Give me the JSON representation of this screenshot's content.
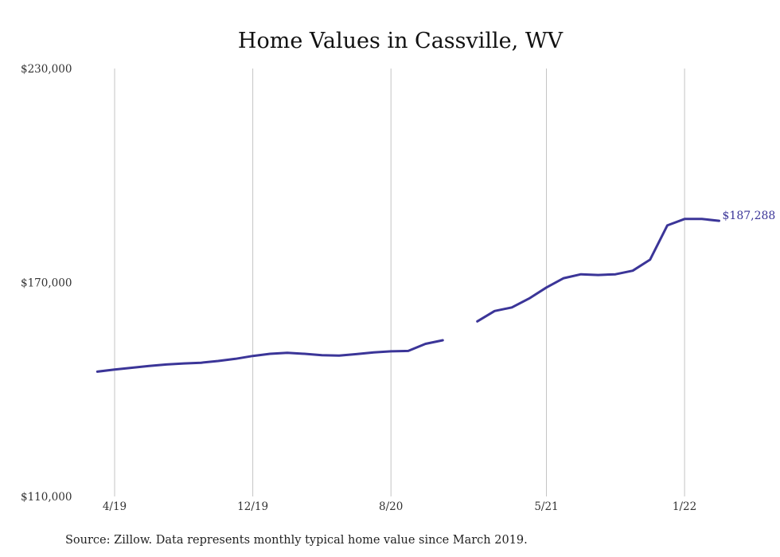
{
  "chart_data": {
    "type": "line",
    "title": "Home Values in Cassville, WV",
    "xlabel": "",
    "ylabel": "",
    "ylim": [
      110000,
      230000
    ],
    "y_ticks": [
      {
        "value": 110000,
        "label": "$110,000"
      },
      {
        "value": 170000,
        "label": "$170,000"
      },
      {
        "value": 230000,
        "label": "$230,000"
      }
    ],
    "x_ticks": [
      {
        "date": "2019-04",
        "label": "4/19"
      },
      {
        "date": "2019-12",
        "label": "12/19"
      },
      {
        "date": "2020-08",
        "label": "8/20"
      },
      {
        "date": "2021-05",
        "label": "5/21"
      },
      {
        "date": "2022-01",
        "label": "1/22"
      }
    ],
    "grid": "vertical-at-x-ticks",
    "line_color": "#3b3598",
    "series": [
      {
        "name": "",
        "color": "#3b3598",
        "points": [
          {
            "x": "2019-03",
            "y": 145000
          },
          {
            "x": "2019-04",
            "y": 145600
          },
          {
            "x": "2019-05",
            "y": 146100
          },
          {
            "x": "2019-06",
            "y": 146600
          },
          {
            "x": "2019-07",
            "y": 147000
          },
          {
            "x": "2019-08",
            "y": 147300
          },
          {
            "x": "2019-09",
            "y": 147500
          },
          {
            "x": "2019-10",
            "y": 148000
          },
          {
            "x": "2019-11",
            "y": 148600
          },
          {
            "x": "2019-12",
            "y": 149400
          },
          {
            "x": "2020-01",
            "y": 150000
          },
          {
            "x": "2020-02",
            "y": 150300
          },
          {
            "x": "2020-03",
            "y": 150000
          },
          {
            "x": "2020-04",
            "y": 149600
          },
          {
            "x": "2020-05",
            "y": 149500
          },
          {
            "x": "2020-06",
            "y": 149900
          },
          {
            "x": "2020-07",
            "y": 150400
          },
          {
            "x": "2020-08",
            "y": 150700
          },
          {
            "x": "2020-09",
            "y": 150800
          },
          {
            "x": "2020-10",
            "y": 152800
          },
          {
            "x": "2020-11",
            "y": 153800
          },
          {
            "x": "2020-12",
            "y": null
          },
          {
            "x": "2021-01",
            "y": 159100
          },
          {
            "x": "2021-02",
            "y": 162000
          },
          {
            "x": "2021-03",
            "y": 163000
          },
          {
            "x": "2021-04",
            "y": 165500
          },
          {
            "x": "2021-05",
            "y": 168600
          },
          {
            "x": "2021-06",
            "y": 171200
          },
          {
            "x": "2021-07",
            "y": 172300
          },
          {
            "x": "2021-08",
            "y": 172100
          },
          {
            "x": "2021-09",
            "y": 172300
          },
          {
            "x": "2021-10",
            "y": 173300
          },
          {
            "x": "2021-11",
            "y": 176400
          },
          {
            "x": "2021-12",
            "y": 186000
          },
          {
            "x": "2022-01",
            "y": 187800
          },
          {
            "x": "2022-02",
            "y": 187800
          },
          {
            "x": "2022-03",
            "y": 187288
          }
        ]
      }
    ],
    "end_label": "$187,288",
    "source_note": "Source: Zillow. Data represents monthly typical home value since March 2019."
  }
}
